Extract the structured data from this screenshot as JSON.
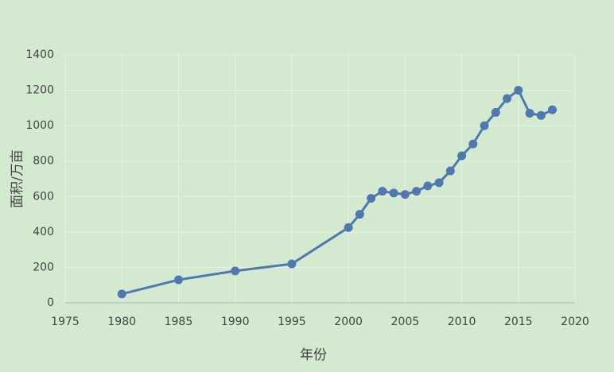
{
  "chart_data": {
    "type": "line",
    "x_label": "年份",
    "y_label": "面积/万亩",
    "x": [
      1980,
      1985,
      1990,
      1995,
      2000,
      2001,
      2002,
      2003,
      2004,
      2005,
      2006,
      2007,
      2008,
      2009,
      2010,
      2011,
      2012,
      2013,
      2014,
      2015,
      2016,
      2017,
      2018
    ],
    "series": [
      {
        "name": "面积",
        "color": "#4f79ae",
        "values": [
          50,
          130,
          180,
          220,
          425,
          500,
          590,
          630,
          620,
          612,
          630,
          660,
          678,
          745,
          830,
          897,
          1000,
          1075,
          1153,
          1200,
          1070,
          1058,
          1090
        ]
      }
    ],
    "xlim": [
      1975,
      2020
    ],
    "xticks": [
      1975,
      1980,
      1985,
      1990,
      1995,
      2000,
      2005,
      2010,
      2015,
      2020
    ],
    "ylim": [
      0,
      1400
    ],
    "yticks": [
      0,
      200,
      400,
      600,
      800,
      1000,
      1200,
      1400
    ],
    "grid": true,
    "legend": false
  }
}
